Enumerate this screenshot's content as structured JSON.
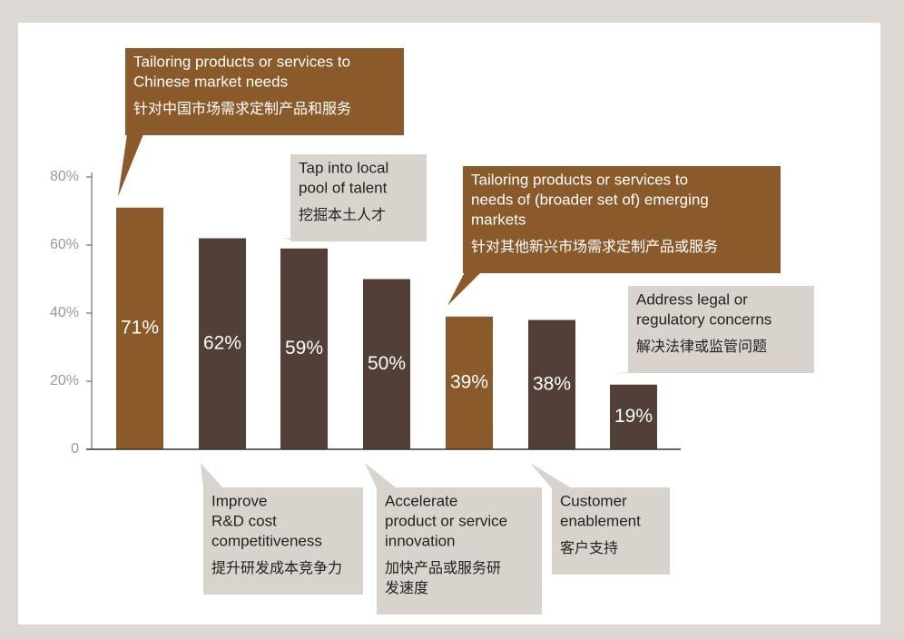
{
  "chart_data": {
    "type": "bar",
    "categories": [
      {
        "en": [
          "Tailoring products or services to",
          "Chinese market needs"
        ],
        "zh": [
          "针对中国市场需求定制产品和服务"
        ]
      },
      {
        "en": [
          "Improve",
          "R&D cost",
          "competitiveness"
        ],
        "zh": [
          "提升研发成本竞争力"
        ]
      },
      {
        "en": [
          "Tap into local",
          "pool of talent"
        ],
        "zh": [
          "挖掘本土人才"
        ]
      },
      {
        "en": [
          "Accelerate",
          "product or service",
          "innovation"
        ],
        "zh": [
          "加快产品或服务研",
          "发速度"
        ]
      },
      {
        "en": [
          "Tailoring products or services to",
          "needs of (broader set of) emerging",
          "markets"
        ],
        "zh": [
          "针对其他新兴市场需求定制产品或服务"
        ]
      },
      {
        "en": [
          "Customer",
          "enablement"
        ],
        "zh": [
          "客户支持"
        ]
      },
      {
        "en": [
          "Address legal or",
          "regulatory concerns"
        ],
        "zh": [
          "解决法律或监管问题"
        ]
      }
    ],
    "values": [
      71,
      62,
      59,
      50,
      39,
      38,
      19
    ],
    "value_labels": [
      "71%",
      "62%",
      "59%",
      "50%",
      "39%",
      "38%",
      "19%"
    ],
    "colors": [
      "#8b5a2b",
      "#523f38",
      "#523f38",
      "#523f38",
      "#8b5a2b",
      "#523f38",
      "#523f38"
    ],
    "ylim": [
      0,
      80
    ],
    "yticks": [
      0,
      {
        "value": 20,
        "label": "20%"
      },
      {
        "value": 40,
        "label": "40%"
      },
      {
        "value": 60,
        "label": "60%"
      },
      {
        "value": 80,
        "label": "80%"
      }
    ]
  }
}
